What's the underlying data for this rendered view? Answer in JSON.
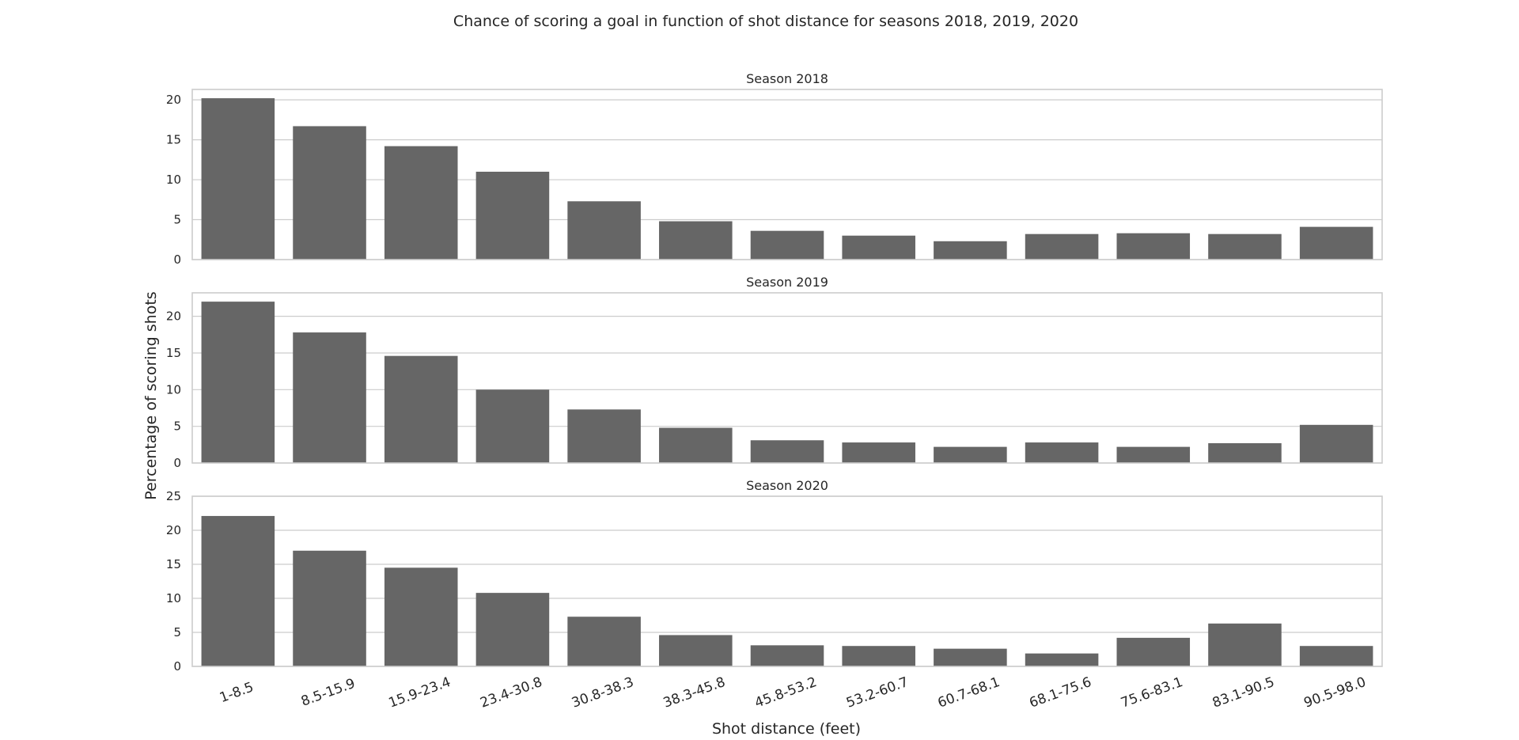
{
  "chart_data": {
    "type": "bar",
    "title": "Chance of scoring a goal in function of shot distance for seasons 2018, 2019, 2020",
    "xlabel": "Shot distance (feet)",
    "ylabel": "Percentage of scoring shots",
    "bar_color": "#666666",
    "grid": true,
    "categories": [
      "1-8.5",
      "8.5-15.9",
      "15.9-23.4",
      "23.4-30.8",
      "30.8-38.3",
      "38.3-45.8",
      "45.8-53.2",
      "53.2-60.7",
      "60.7-68.1",
      "68.1-75.6",
      "75.6-83.1",
      "83.1-90.5",
      "90.5-98.0"
    ],
    "panels": [
      {
        "title": "Season 2018",
        "ylim": [
          0,
          21.3
        ],
        "yticks": [
          0,
          5,
          10,
          15,
          20
        ],
        "values": [
          20.2,
          16.7,
          14.2,
          11.0,
          7.3,
          4.8,
          3.6,
          3.0,
          2.3,
          3.2,
          3.3,
          3.2,
          4.1
        ]
      },
      {
        "title": "Season 2019",
        "ylim": [
          0,
          23.2
        ],
        "yticks": [
          0,
          5,
          10,
          15,
          20
        ],
        "values": [
          22.0,
          17.8,
          14.6,
          10.0,
          7.3,
          4.8,
          3.1,
          2.8,
          2.2,
          2.8,
          2.2,
          2.7,
          5.2
        ]
      },
      {
        "title": "Season 2020",
        "ylim": [
          0,
          25
        ],
        "yticks": [
          0,
          5,
          10,
          15,
          20,
          25
        ],
        "values": [
          22.1,
          17.0,
          14.5,
          10.8,
          7.3,
          4.6,
          3.1,
          3.0,
          2.6,
          1.9,
          4.2,
          6.3,
          3.0
        ]
      }
    ]
  }
}
